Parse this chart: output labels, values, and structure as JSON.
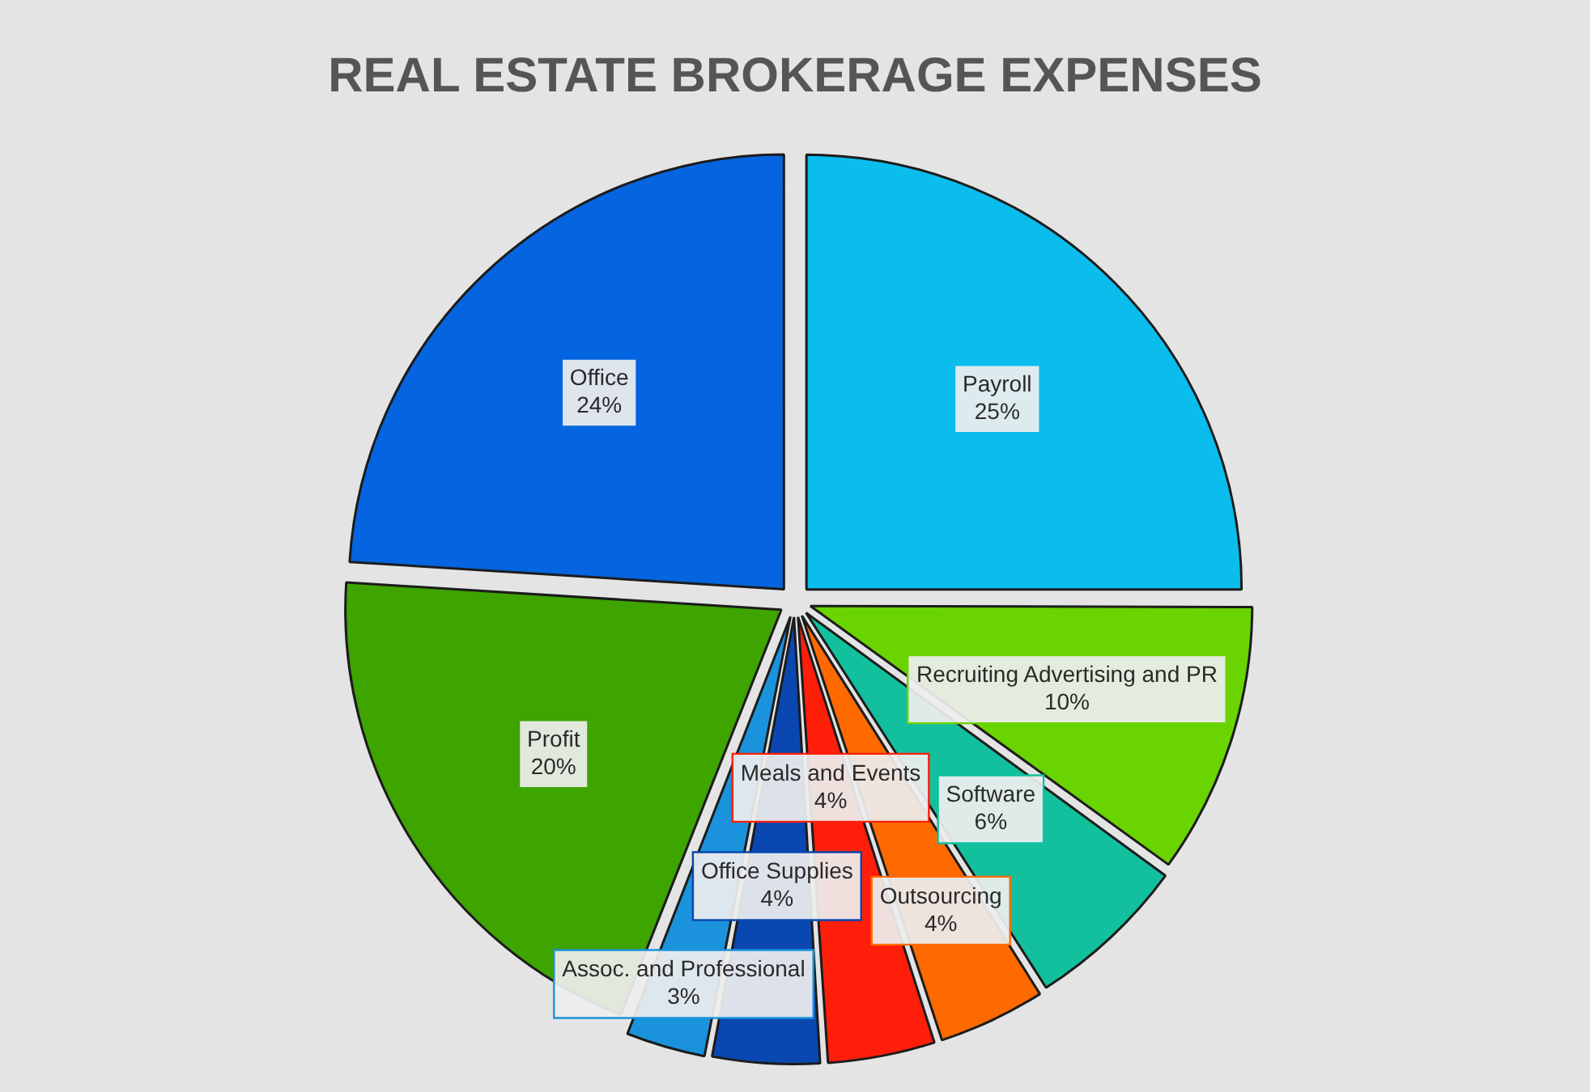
{
  "chart_data": {
    "type": "pie",
    "title": "REAL ESTATE BROKERAGE EXPENSES",
    "categories": [
      "Payroll",
      "Recruiting Advertising and PR",
      "Software",
      "Outsourcing",
      "Meals and Events",
      "Office Supplies",
      "Assoc. and Professional",
      "Profit",
      "Office"
    ],
    "values": [
      25,
      10,
      6,
      4,
      4,
      4,
      3,
      20,
      24
    ],
    "value_labels": [
      "25%",
      "10%",
      "6%",
      "4%",
      "4%",
      "4%",
      "3%",
      "20%",
      "24%"
    ],
    "colors": [
      "#0abdec",
      "#6ad400",
      "#12c09e",
      "#ff6a00",
      "#fe1e0a",
      "#0a47b0",
      "#1a93dc",
      "#3ea400",
      "#0565e0"
    ],
    "legend": false
  }
}
